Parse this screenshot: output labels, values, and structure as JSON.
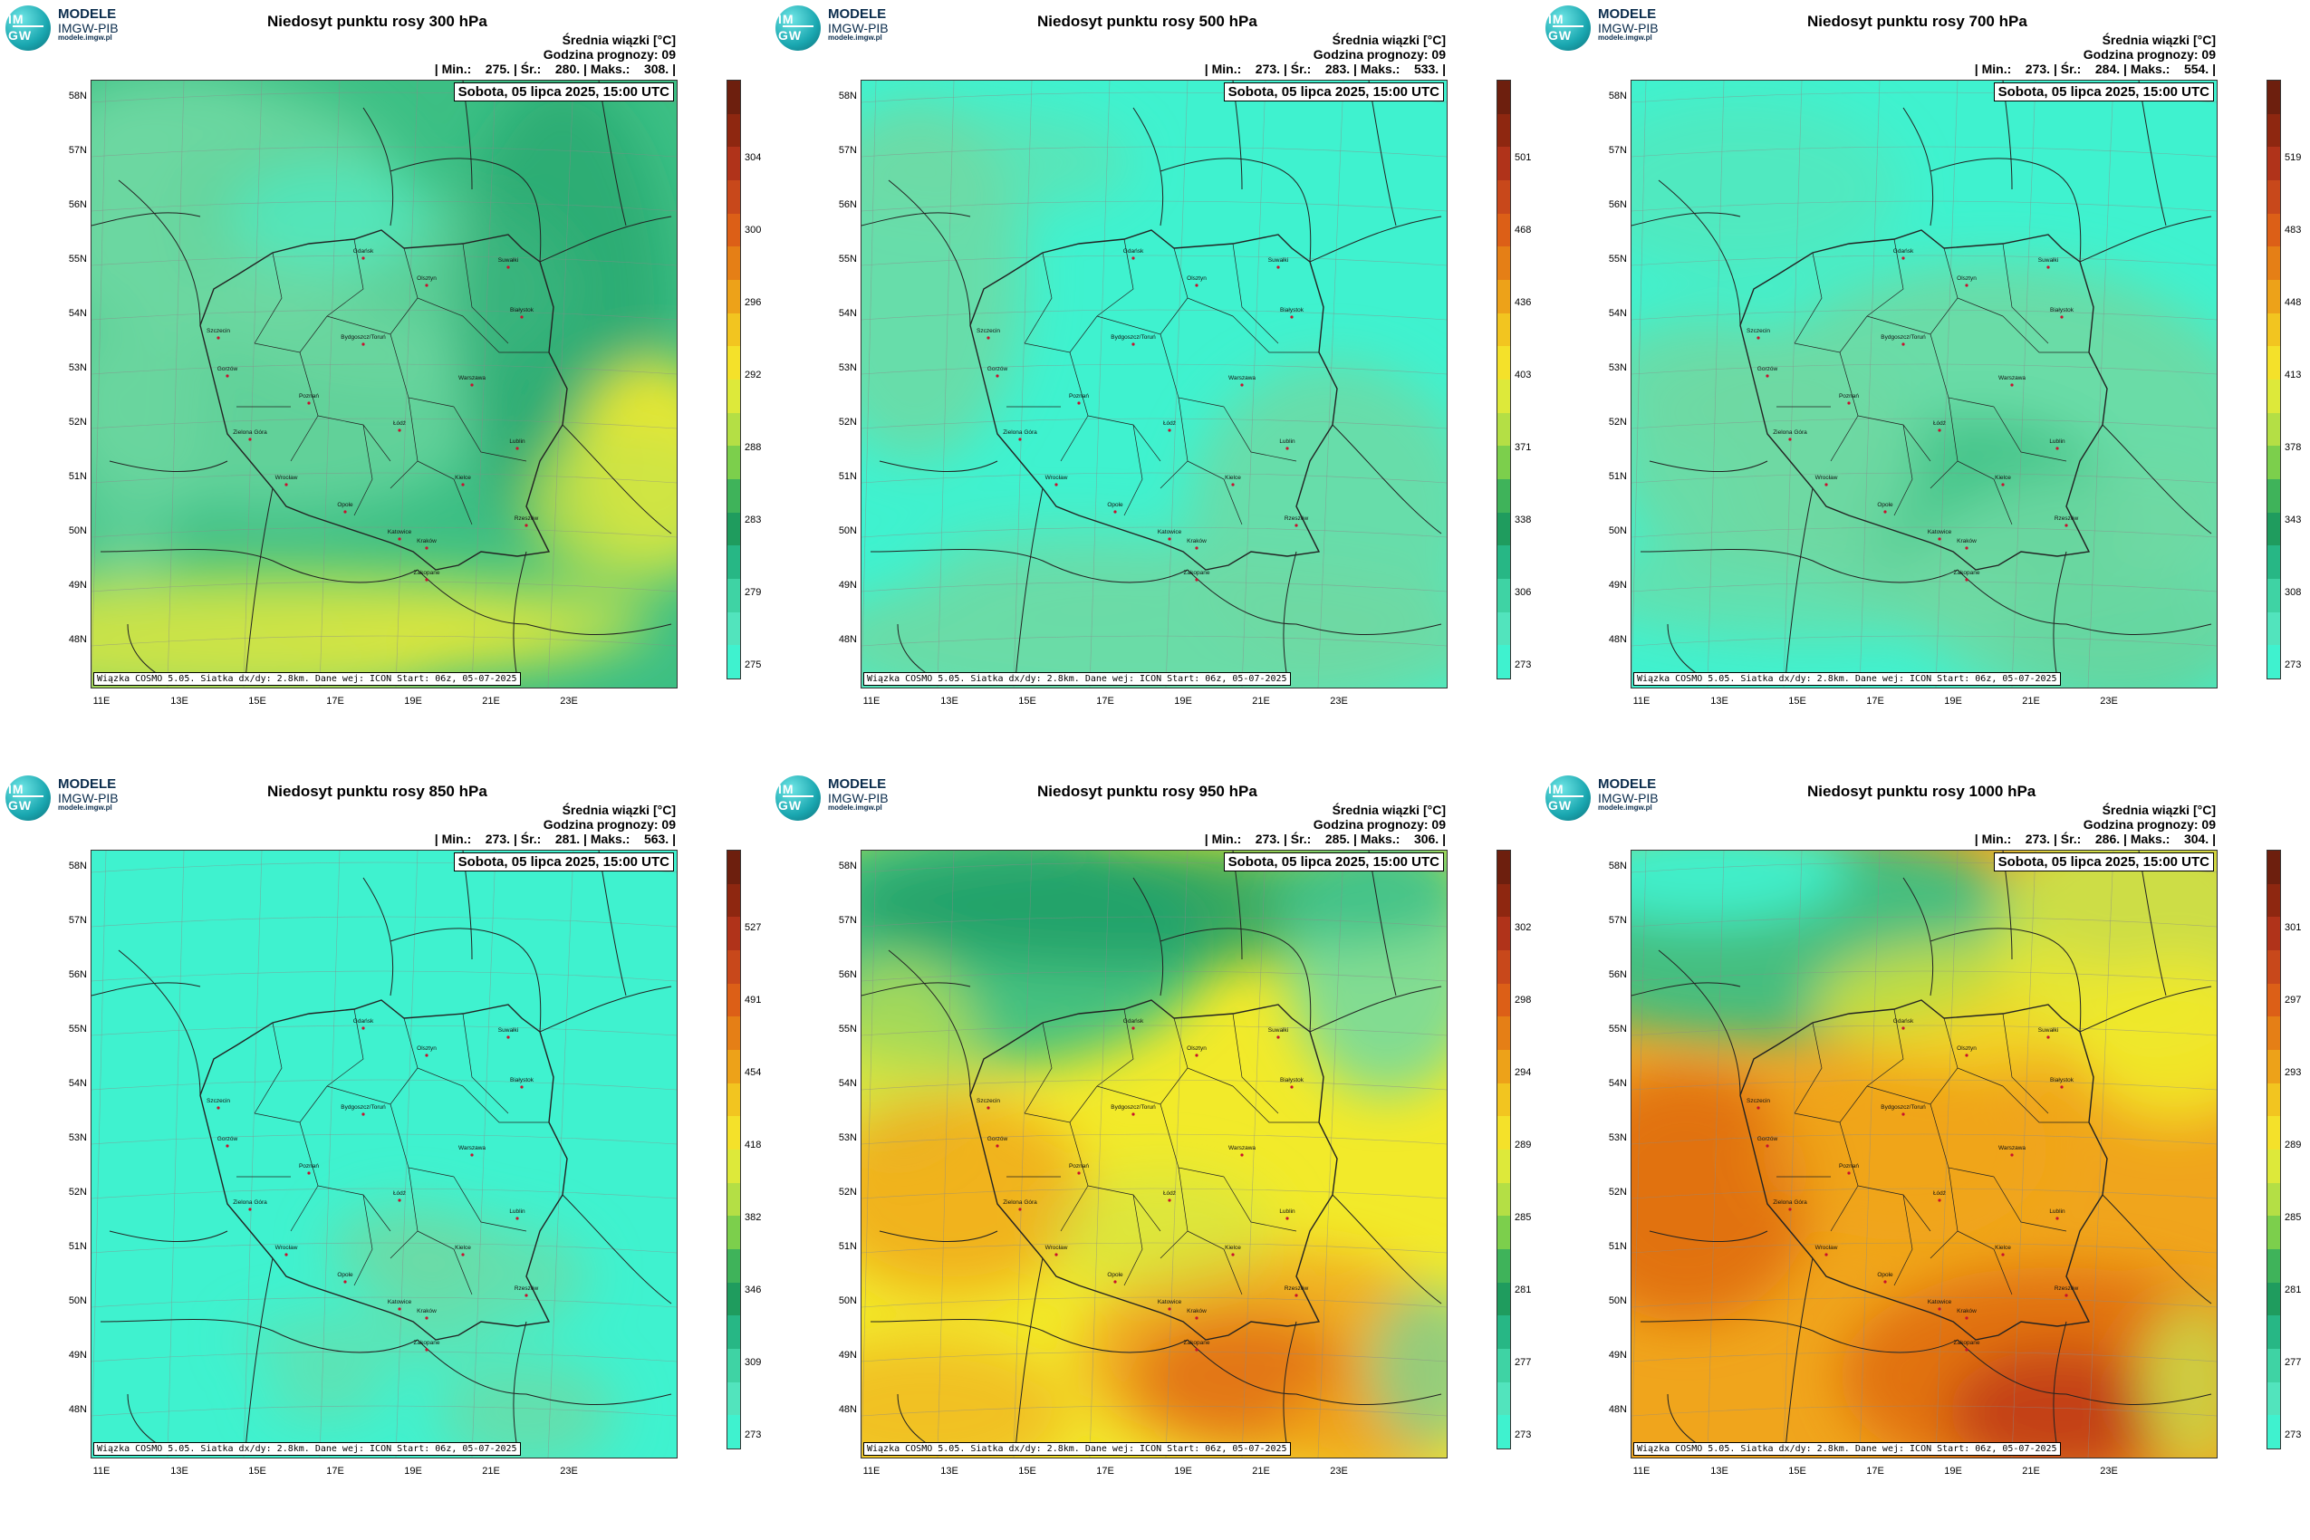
{
  "logo": {
    "line1": "MODELE",
    "line2": "IMGW-PIB",
    "line3": "modele.imgw.pl",
    "mark_top": "IM",
    "mark_bottom": "GW"
  },
  "common": {
    "legend_title": "Średnia wiązki [°C]",
    "forecast_hour": "Godzina prognozy: 09",
    "date": "Sobota, 05 lipca 2025, 15:00 UTC",
    "credit": "Wiązka COSMO 5.05. Siatka dx/dy: 2.8km. Dane wej: ICON Start: 06z, 05-07-2025",
    "lat_labels": [
      "58N",
      "57N",
      "56N",
      "55N",
      "54N",
      "53N",
      "52N",
      "51N",
      "50N",
      "49N",
      "48N"
    ],
    "lon_labels": [
      "11E",
      "13E",
      "15E",
      "17E",
      "19E",
      "21E",
      "23E"
    ]
  },
  "cities": [
    "Gdańsk",
    "Olsztyn",
    "Suwałki",
    "Szczecin",
    "Bydgoszcz/Toruń",
    "Białystok",
    "Gorzów",
    "Poznań",
    "Warszawa",
    "Zielona Góra",
    "Łódź",
    "Lublin",
    "Wrocław",
    "Kielce",
    "Opole",
    "Rzeszów",
    "Katowice",
    "Kraków",
    "Zakopane"
  ],
  "colors": {
    "teal": "#3ff2cf",
    "green_light": "#6fd9a3",
    "green_mid": "#3cbf84",
    "green_dark": "#1e9e66",
    "yellow_green": "#c9e34a",
    "yellow": "#f2ea2a",
    "orange": "#f0a51c",
    "orange_dark": "#e06d12",
    "red": "#c0391a",
    "brown": "#6d1f0e"
  },
  "panels": [
    {
      "title": "Niedosyt punktu rosy 300 hPa",
      "stats": "| Min.:    275. | Śr.:    280. | Maks.:    308. |",
      "colorbar": [
        "304",
        "300",
        "296",
        "292",
        "288",
        "283",
        "279",
        "275"
      ],
      "min": 275,
      "mean": 280,
      "max": 308
    },
    {
      "title": "Niedosyt punktu rosy 500 hPa",
      "stats": "| Min.:    273. | Śr.:    283. | Maks.:    533. |",
      "colorbar": [
        "501",
        "468",
        "436",
        "403",
        "371",
        "338",
        "306",
        "273"
      ],
      "min": 273,
      "mean": 283,
      "max": 533
    },
    {
      "title": "Niedosyt punktu rosy 700 hPa",
      "stats": "| Min.:    273. | Śr.:    284. | Maks.:    554. |",
      "colorbar": [
        "519",
        "483",
        "448",
        "413",
        "378",
        "343",
        "308",
        "273"
      ],
      "min": 273,
      "mean": 284,
      "max": 554
    },
    {
      "title": "Niedosyt punktu rosy 850 hPa",
      "stats": "| Min.:    273. | Śr.:    281. | Maks.:    563. |",
      "colorbar": [
        "527",
        "491",
        "454",
        "418",
        "382",
        "346",
        "309",
        "273"
      ],
      "min": 273,
      "mean": 281,
      "max": 563
    },
    {
      "title": "Niedosyt punktu rosy 950 hPa",
      "stats": "| Min.:    273. | Śr.:    285. | Maks.:    306. |",
      "colorbar": [
        "302",
        "298",
        "294",
        "289",
        "285",
        "281",
        "277",
        "273"
      ],
      "min": 273,
      "mean": 285,
      "max": 306
    },
    {
      "title": "Niedosyt punktu rosy 1000 hPa",
      "stats": "| Min.:    273. | Śr.:    286. | Maks.:    304. |",
      "colorbar": [
        "301",
        "297",
        "293",
        "289",
        "285",
        "281",
        "277",
        "273"
      ],
      "min": 273,
      "mean": 286,
      "max": 304
    }
  ]
}
